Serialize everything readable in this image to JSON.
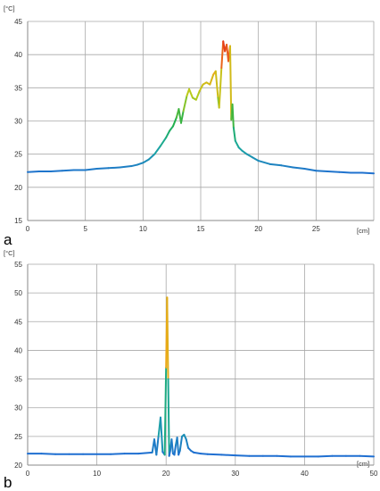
{
  "colors": {
    "grid": "#a8a8a8",
    "axis": "#8a8a8a",
    "baseline_blue": "#1f6fd1",
    "gradient": [
      "#1f6fd1",
      "#1aa8a0",
      "#22b04a",
      "#b8cc1a",
      "#f2a318",
      "#e2241c"
    ]
  },
  "chart_data": [
    {
      "panel": "a",
      "type": "line",
      "xunit": "[cm]",
      "yunit": "[°C]",
      "xlim": [
        0,
        30
      ],
      "ylim": [
        15,
        45
      ],
      "xticks": [
        0,
        5,
        10,
        15,
        20,
        25
      ],
      "yticks": [
        15,
        20,
        25,
        30,
        35,
        40,
        45
      ],
      "grid": true,
      "color_scale": [
        22,
        42
      ],
      "series": [
        {
          "x": [
            0,
            1,
            2,
            3,
            4,
            5,
            6,
            7,
            8,
            9,
            9.5,
            10,
            10.5,
            11,
            11.5,
            12,
            12.3,
            12.6,
            12.9,
            13.1,
            13.3,
            13.5,
            13.8,
            14.0,
            14.3,
            14.6,
            14.9,
            15.2,
            15.5,
            15.8,
            16.1,
            16.3,
            16.5,
            16.6,
            16.8,
            16.95,
            17.1,
            17.25,
            17.4,
            17.55,
            17.65,
            17.75,
            17.85,
            18.0,
            18.3,
            18.6,
            19.0,
            19.5,
            20,
            21,
            22,
            23,
            24,
            25,
            26,
            27,
            28,
            29,
            30
          ],
          "y": [
            22.3,
            22.4,
            22.4,
            22.5,
            22.6,
            22.6,
            22.8,
            22.9,
            23.0,
            23.2,
            23.4,
            23.7,
            24.2,
            25.0,
            26.2,
            27.5,
            28.5,
            29.2,
            30.5,
            31.8,
            29.7,
            31.5,
            33.8,
            34.8,
            33.5,
            33.2,
            34.5,
            35.5,
            35.8,
            35.5,
            37.0,
            37.5,
            33.5,
            32.0,
            38.0,
            42.0,
            40.5,
            41.5,
            39.0,
            41.3,
            30.2,
            32.5,
            29.0,
            27.0,
            26.0,
            25.5,
            25.0,
            24.5,
            24.0,
            23.5,
            23.3,
            23.0,
            22.8,
            22.5,
            22.4,
            22.3,
            22.2,
            22.2,
            22.1
          ]
        }
      ]
    },
    {
      "panel": "b",
      "type": "line",
      "xunit": "[cm]",
      "yunit": "[°C]",
      "xlim": [
        0,
        50
      ],
      "ylim": [
        20,
        55
      ],
      "xticks": [
        0,
        10,
        20,
        30,
        40,
        50
      ],
      "yticks": [
        20,
        25,
        30,
        35,
        40,
        45,
        50,
        55
      ],
      "grid": true,
      "color_scale": [
        22,
        49
      ],
      "series": [
        {
          "x": [
            0,
            2,
            4,
            6,
            8,
            10,
            12,
            14,
            16,
            17,
            18,
            18.3,
            18.6,
            18.9,
            19.2,
            19.5,
            19.8,
            20.0,
            20.15,
            20.3,
            20.45,
            20.6,
            20.8,
            21.0,
            21.2,
            21.4,
            21.6,
            21.8,
            22.0,
            22.3,
            22.6,
            22.9,
            23.2,
            23.6,
            24,
            25,
            26,
            28,
            30,
            32,
            34,
            36,
            38,
            40,
            42,
            44,
            46,
            48,
            50
          ],
          "y": [
            22.0,
            22.0,
            21.9,
            21.9,
            21.9,
            21.9,
            21.9,
            22.0,
            22.0,
            22.1,
            22.2,
            24.5,
            21.8,
            25.0,
            28.3,
            22.3,
            21.8,
            37.0,
            49.2,
            35.0,
            21.6,
            22.5,
            24.5,
            22.0,
            21.8,
            23.5,
            24.8,
            21.8,
            22.5,
            25.0,
            25.3,
            24.5,
            23.0,
            22.5,
            22.2,
            22.0,
            21.9,
            21.8,
            21.7,
            21.6,
            21.6,
            21.6,
            21.5,
            21.5,
            21.5,
            21.6,
            21.6,
            21.6,
            21.5
          ]
        }
      ]
    }
  ]
}
